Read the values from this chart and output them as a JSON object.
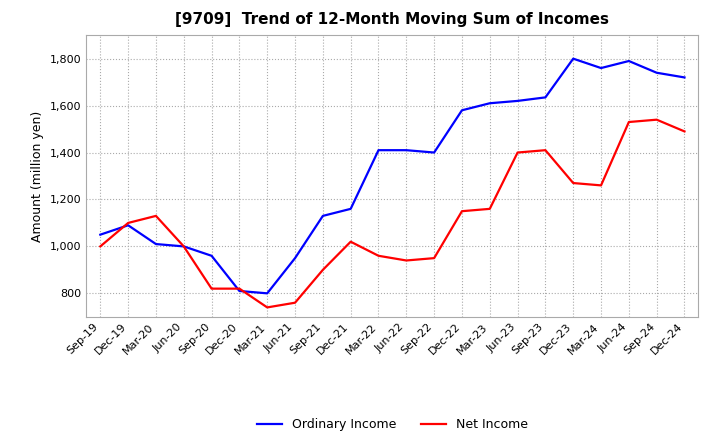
{
  "title": "[9709]  Trend of 12-Month Moving Sum of Incomes",
  "ylabel": "Amount (million yen)",
  "ylim": [
    700,
    1900
  ],
  "yticks": [
    800,
    1000,
    1200,
    1400,
    1600,
    1800
  ],
  "background_color": "#ffffff",
  "grid_color": "#aaaaaa",
  "ordinary_income_color": "#0000ff",
  "net_income_color": "#ff0000",
  "x_labels": [
    "Sep-19",
    "Dec-19",
    "Mar-20",
    "Jun-20",
    "Sep-20",
    "Dec-20",
    "Mar-21",
    "Jun-21",
    "Sep-21",
    "Dec-21",
    "Mar-22",
    "Jun-22",
    "Sep-22",
    "Dec-22",
    "Mar-23",
    "Jun-23",
    "Sep-23",
    "Dec-23",
    "Mar-24",
    "Jun-24",
    "Sep-24",
    "Dec-24"
  ],
  "ordinary_income": [
    1050,
    1090,
    1010,
    1000,
    960,
    810,
    800,
    950,
    1130,
    1160,
    1410,
    1410,
    1400,
    1580,
    1610,
    1620,
    1635,
    1800,
    1760,
    1790,
    1740,
    1720
  ],
  "net_income": [
    1000,
    1100,
    1130,
    1000,
    820,
    820,
    740,
    760,
    900,
    1020,
    960,
    940,
    950,
    1150,
    1160,
    1400,
    1410,
    1270,
    1260,
    1530,
    1540,
    1490
  ]
}
